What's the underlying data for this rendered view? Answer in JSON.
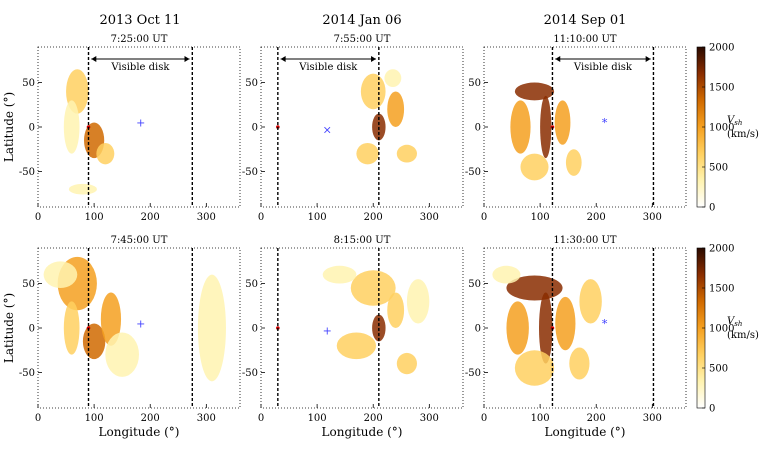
{
  "chart_data": {
    "type": "heatmap",
    "column_titles": [
      "2013 Oct 11",
      "2014 Jan 06",
      "2014 Sep 01"
    ],
    "panels": [
      {
        "event": "2013 Oct 11",
        "row": 0,
        "time": "7:25:00 UT",
        "boundaries": [
          90,
          275
        ],
        "visible_disk_label": "Visible disk",
        "arrow_range": [
          95,
          270
        ],
        "marker_lon": 183,
        "marker_lat": 5,
        "marker_symbol": "+",
        "blobs": [
          {
            "lon": 70,
            "lat": 40,
            "rx": 20,
            "ry": 25,
            "v": 600
          },
          {
            "lon": 100,
            "lat": -15,
            "rx": 18,
            "ry": 20,
            "v": 1300
          },
          {
            "lon": 60,
            "lat": 0,
            "rx": 14,
            "ry": 30,
            "v": 450
          },
          {
            "lon": 120,
            "lat": -30,
            "rx": 16,
            "ry": 12,
            "v": 500
          },
          {
            "lon": 80,
            "lat": -70,
            "rx": 25,
            "ry": 6,
            "v": 350
          }
        ]
      },
      {
        "event": "2014 Jan 06",
        "row": 0,
        "time": "7:55:00 UT",
        "boundaries": [
          30,
          210
        ],
        "visible_disk_label": "Visible disk",
        "arrow_range": [
          35,
          205
        ],
        "marker_lon": 118,
        "marker_lat": -3,
        "marker_symbol": "×",
        "blobs": [
          {
            "lon": 210,
            "lat": 0,
            "rx": 12,
            "ry": 15,
            "v": 1500
          },
          {
            "lon": 200,
            "lat": 40,
            "rx": 22,
            "ry": 20,
            "v": 600
          },
          {
            "lon": 240,
            "lat": 20,
            "rx": 15,
            "ry": 20,
            "v": 900
          },
          {
            "lon": 190,
            "lat": -30,
            "rx": 20,
            "ry": 12,
            "v": 700
          },
          {
            "lon": 260,
            "lat": -30,
            "rx": 18,
            "ry": 10,
            "v": 500
          },
          {
            "lon": 235,
            "lat": 55,
            "rx": 15,
            "ry": 10,
            "v": 400
          }
        ]
      },
      {
        "event": "2014 Sep 01",
        "row": 0,
        "time": "11:10:00 UT",
        "boundaries": [
          122,
          302
        ],
        "visible_disk_label": "Visible disk",
        "arrow_range": [
          127,
          297
        ],
        "marker_lon": 215,
        "marker_lat": 5,
        "marker_symbol": "*",
        "blobs": [
          {
            "lon": 90,
            "lat": 40,
            "rx": 35,
            "ry": 10,
            "v": 1600
          },
          {
            "lon": 110,
            "lat": 0,
            "rx": 10,
            "ry": 35,
            "v": 1700
          },
          {
            "lon": 65,
            "lat": 0,
            "rx": 18,
            "ry": 30,
            "v": 900
          },
          {
            "lon": 140,
            "lat": 5,
            "rx": 14,
            "ry": 25,
            "v": 1000
          },
          {
            "lon": 90,
            "lat": -45,
            "rx": 25,
            "ry": 15,
            "v": 600
          },
          {
            "lon": 160,
            "lat": -40,
            "rx": 14,
            "ry": 15,
            "v": 500
          }
        ]
      },
      {
        "event": "2013 Oct 11",
        "row": 1,
        "time": "7:45:00 UT",
        "boundaries": [
          90,
          275
        ],
        "visible_disk_label": "",
        "arrow_range": null,
        "marker_lon": 183,
        "marker_lat": 5,
        "marker_symbol": "+",
        "blobs": [
          {
            "lon": 70,
            "lat": 50,
            "rx": 35,
            "ry": 30,
            "v": 900
          },
          {
            "lon": 100,
            "lat": -15,
            "rx": 20,
            "ry": 20,
            "v": 1300
          },
          {
            "lon": 130,
            "lat": 10,
            "rx": 18,
            "ry": 30,
            "v": 1000
          },
          {
            "lon": 40,
            "lat": 60,
            "rx": 30,
            "ry": 15,
            "v": 400
          },
          {
            "lon": 150,
            "lat": -30,
            "rx": 30,
            "ry": 25,
            "v": 300
          },
          {
            "lon": 60,
            "lat": 0,
            "rx": 14,
            "ry": 30,
            "v": 500
          },
          {
            "lon": 310,
            "lat": 0,
            "rx": 25,
            "ry": 60,
            "v": 250
          }
        ]
      },
      {
        "event": "2014 Jan 06",
        "row": 1,
        "time": "8:15:00 UT",
        "boundaries": [
          30,
          210
        ],
        "visible_disk_label": "",
        "arrow_range": null,
        "marker_lon": 118,
        "marker_lat": -3,
        "marker_symbol": "+",
        "blobs": [
          {
            "lon": 210,
            "lat": 0,
            "rx": 12,
            "ry": 15,
            "v": 1600
          },
          {
            "lon": 200,
            "lat": 45,
            "rx": 40,
            "ry": 20,
            "v": 500
          },
          {
            "lon": 240,
            "lat": 20,
            "rx": 15,
            "ry": 20,
            "v": 700
          },
          {
            "lon": 170,
            "lat": -20,
            "rx": 35,
            "ry": 15,
            "v": 600
          },
          {
            "lon": 260,
            "lat": -40,
            "rx": 18,
            "ry": 12,
            "v": 500
          },
          {
            "lon": 140,
            "lat": 60,
            "rx": 30,
            "ry": 10,
            "v": 350
          },
          {
            "lon": 280,
            "lat": 30,
            "rx": 20,
            "ry": 25,
            "v": 300
          }
        ]
      },
      {
        "event": "2014 Sep 01",
        "row": 1,
        "time": "11:30:00 UT",
        "boundaries": [
          122,
          302
        ],
        "visible_disk_label": "",
        "arrow_range": null,
        "marker_lon": 215,
        "marker_lat": 5,
        "marker_symbol": "*",
        "blobs": [
          {
            "lon": 90,
            "lat": 45,
            "rx": 50,
            "ry": 14,
            "v": 1800
          },
          {
            "lon": 110,
            "lat": 0,
            "rx": 12,
            "ry": 40,
            "v": 1700
          },
          {
            "lon": 60,
            "lat": 0,
            "rx": 20,
            "ry": 30,
            "v": 1000
          },
          {
            "lon": 145,
            "lat": 5,
            "rx": 18,
            "ry": 30,
            "v": 1100
          },
          {
            "lon": 90,
            "lat": -45,
            "rx": 35,
            "ry": 20,
            "v": 800
          },
          {
            "lon": 170,
            "lat": -40,
            "rx": 18,
            "ry": 18,
            "v": 600
          },
          {
            "lon": 190,
            "lat": 30,
            "rx": 20,
            "ry": 25,
            "v": 500
          },
          {
            "lon": 40,
            "lat": 60,
            "rx": 25,
            "ry": 10,
            "v": 450
          }
        ]
      }
    ],
    "xlim": [
      0,
      360
    ],
    "ylim": [
      -90,
      90
    ],
    "xticks": [
      0,
      100,
      200,
      300
    ],
    "yticks": [
      -50,
      0,
      50
    ],
    "xlabel": "Longitude (°)",
    "ylabel": "Latitude (°)",
    "colorbar": {
      "min": 0,
      "max": 2000,
      "ticks": [
        0,
        500,
        1000,
        1500,
        2000
      ],
      "label_symbol": "V",
      "label_subscript": "sh",
      "label_units": "(km/s)"
    },
    "colormap": [
      "#ffffff",
      "#fff3b0",
      "#ffd060",
      "#f5a020",
      "#d06a00",
      "#8a2d00",
      "#2a0a00"
    ],
    "marker_color": "#4040ff",
    "source_marker_color": "#cc0000"
  }
}
